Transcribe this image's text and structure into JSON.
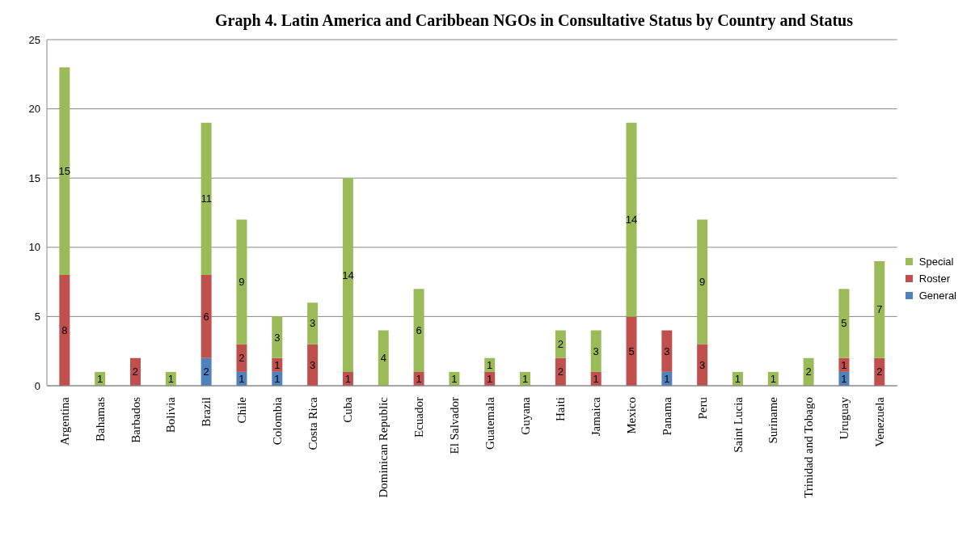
{
  "chart_data": {
    "type": "bar",
    "title": "Graph 4. Latin America and Caribbean NGOs in Consultative Status by Country and Status",
    "categories": [
      "Argentina",
      "Bahamas",
      "Barbados",
      "Bolivia",
      "Brazil",
      "Chile",
      "Colombia",
      "Costa Rica",
      "Cuba",
      "Dominican Republic",
      "Ecuador",
      "El Salvador",
      "Guatemala",
      "Guyana",
      "Haiti",
      "Jamaica",
      "Mexico",
      "Panama",
      "Peru",
      "Saint Lucia",
      "Suriname",
      "Trinidad and Tobago",
      "Uruguay",
      "Venezuela"
    ],
    "series": [
      {
        "name": "General",
        "color": "#4f81bd",
        "values": [
          null,
          null,
          null,
          null,
          2,
          1,
          1,
          null,
          null,
          null,
          null,
          null,
          null,
          null,
          null,
          null,
          null,
          1,
          null,
          null,
          null,
          null,
          1,
          null
        ]
      },
      {
        "name": "Roster",
        "color": "#c0504d",
        "values": [
          8,
          null,
          2,
          null,
          6,
          2,
          1,
          3,
          1,
          null,
          1,
          null,
          1,
          null,
          2,
          1,
          5,
          3,
          3,
          null,
          null,
          null,
          1,
          2
        ]
      },
      {
        "name": "Special",
        "color": "#9bbb59",
        "values": [
          15,
          1,
          null,
          1,
          11,
          9,
          3,
          3,
          14,
          4,
          6,
          1,
          1,
          1,
          2,
          3,
          14,
          null,
          9,
          1,
          1,
          2,
          5,
          7
        ]
      }
    ],
    "stacked": true,
    "ylim": [
      0,
      25
    ],
    "yticks": [
      0,
      5,
      10,
      15,
      20,
      25
    ],
    "grid": "y",
    "legend": "right",
    "data_labels": true
  }
}
